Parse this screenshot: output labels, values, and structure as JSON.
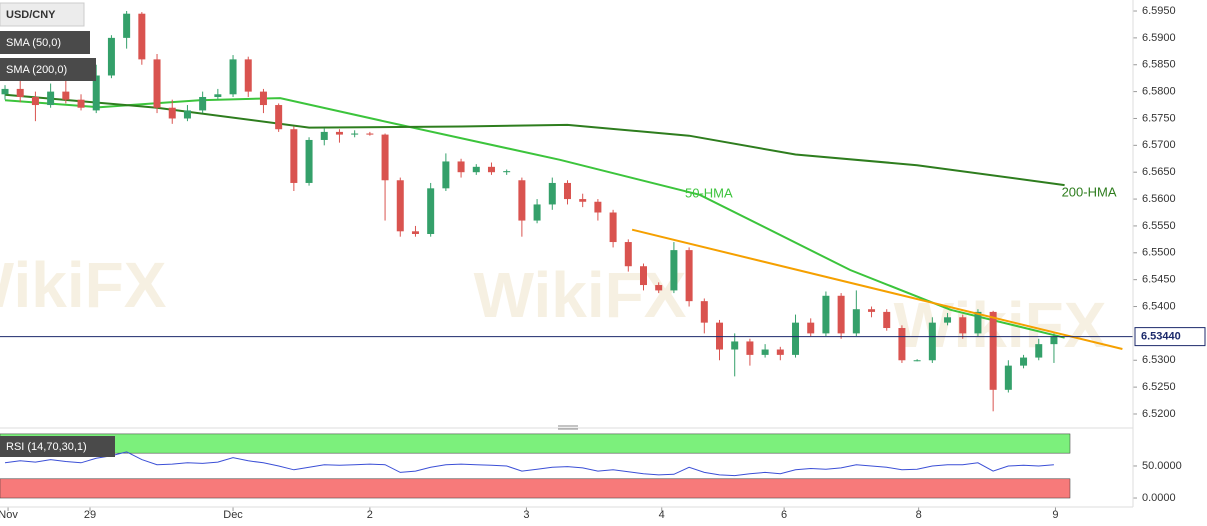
{
  "chart_data": {
    "type": "candlestick",
    "symbol": "USD/CNY",
    "indicators": [
      "SMA (50,0)",
      "SMA (200,0)"
    ],
    "watermark": "WikiFX",
    "xlim": [
      -0.33,
      74.2
    ],
    "xticks": [
      {
        "value": 0.2,
        "label": "Nov"
      },
      {
        "value": 5.59,
        "label": "29"
      },
      {
        "value": 15.0,
        "label": "Dec"
      },
      {
        "value": 24.0,
        "label": "2"
      },
      {
        "value": 34.3,
        "label": "3"
      },
      {
        "value": 43.2,
        "label": "4"
      },
      {
        "value": 51.25,
        "label": "6"
      },
      {
        "value": 60.1,
        "label": "8"
      },
      {
        "value": 69.1,
        "label": "9"
      }
    ],
    "ylim": [
      6.51795,
      6.59705
    ],
    "yticks": [
      {
        "value": 6.52,
        "label": "6.5200"
      },
      {
        "value": 6.525,
        "label": "6.5250"
      },
      {
        "value": 6.53,
        "label": "6.5300"
      },
      {
        "value": 6.54,
        "label": "6.5400"
      },
      {
        "value": 6.545,
        "label": "6.5450"
      },
      {
        "value": 6.55,
        "label": "6.5500"
      },
      {
        "value": 6.555,
        "label": "6.5550"
      },
      {
        "value": 6.56,
        "label": "6.5600"
      },
      {
        "value": 6.565,
        "label": "6.5650"
      },
      {
        "value": 6.57,
        "label": "6.5700"
      },
      {
        "value": 6.575,
        "label": "6.5750"
      },
      {
        "value": 6.58,
        "label": "6.5800"
      },
      {
        "value": 6.585,
        "label": "6.5850"
      },
      {
        "value": 6.59,
        "label": "6.5900"
      },
      {
        "value": 6.595,
        "label": "6.5950"
      }
    ],
    "last_price": {
      "value": 6.5344,
      "label": "6.53440"
    },
    "up_color": "#34a06a",
    "down_color": "#d9534f",
    "open": [
      6.5795,
      6.5805,
      6.579,
      6.5775,
      6.58,
      6.5785,
      6.5765,
      6.583,
      6.59,
      6.5945,
      6.586,
      6.577,
      6.575,
      6.5765,
      6.579,
      6.5795,
      6.586,
      6.58,
      6.5775,
      6.573,
      6.563,
      6.571,
      6.5725,
      6.572,
      6.5722,
      6.572,
      6.5635,
      6.554,
      6.5535,
      6.562,
      6.567,
      6.565,
      6.566,
      6.565,
      6.5635,
      6.556,
      6.559,
      6.563,
      6.56,
      6.5595,
      6.5575,
      6.552,
      6.5475,
      6.544,
      6.543,
      6.5505,
      6.541,
      6.537,
      6.532,
      6.5335,
      6.531,
      6.532,
      6.531,
      6.537,
      6.535,
      6.542,
      6.535,
      6.5395,
      6.539,
      6.536,
      6.53,
      6.53,
      6.537,
      6.538,
      6.535,
      6.539,
      6.5245,
      6.529,
      6.5305,
      6.533
    ],
    "high": [
      6.5812,
      6.583,
      6.58,
      6.5815,
      6.5822,
      6.5795,
      6.585,
      6.5905,
      6.595,
      6.5948,
      6.587,
      6.5785,
      6.5775,
      6.58,
      6.5805,
      6.5868,
      6.5865,
      6.5805,
      6.5778,
      6.5735,
      6.5715,
      6.5732,
      6.573,
      6.5728,
      6.5725,
      6.5722,
      6.564,
      6.555,
      6.563,
      6.5685,
      6.5675,
      6.5665,
      6.5668,
      6.5655,
      6.564,
      6.56,
      6.564,
      6.5635,
      6.561,
      6.56,
      6.558,
      6.5525,
      6.548,
      6.5445,
      6.552,
      6.551,
      6.5415,
      6.5375,
      6.535,
      6.534,
      6.533,
      6.5325,
      6.5385,
      6.5378,
      6.5428,
      6.5425,
      6.543,
      6.54,
      6.5395,
      6.5365,
      6.5302,
      6.538,
      6.5388,
      6.5385,
      6.5395,
      6.5392,
      6.53,
      6.531,
      6.534,
      6.535
    ],
    "low": [
      6.5785,
      6.578,
      6.5745,
      6.577,
      6.5778,
      6.5765,
      6.576,
      6.5825,
      6.588,
      6.585,
      6.576,
      6.574,
      6.5745,
      6.576,
      6.5785,
      6.579,
      6.579,
      6.576,
      6.5725,
      6.5615,
      6.5625,
      6.57,
      6.5705,
      6.5715,
      6.5718,
      6.556,
      6.553,
      6.553,
      6.553,
      6.5615,
      6.564,
      6.5645,
      6.5645,
      6.5645,
      6.553,
      6.5555,
      6.558,
      6.559,
      6.5585,
      6.556,
      6.551,
      6.5465,
      6.543,
      6.5425,
      6.5425,
      6.54,
      6.535,
      6.53,
      6.527,
      6.529,
      6.5305,
      6.53,
      6.5305,
      6.5345,
      6.5345,
      6.534,
      6.5345,
      6.538,
      6.5355,
      6.5295,
      6.5298,
      6.5295,
      6.5365,
      6.534,
      6.5345,
      6.5205,
      6.524,
      6.5285,
      6.53,
      6.5295
    ],
    "close": [
      6.5805,
      6.579,
      6.5775,
      6.58,
      6.5785,
      6.577,
      6.583,
      6.59,
      6.5945,
      6.586,
      6.577,
      6.575,
      6.5765,
      6.579,
      6.5795,
      6.586,
      6.58,
      6.5775,
      6.573,
      6.563,
      6.571,
      6.5725,
      6.572,
      6.5722,
      6.572,
      6.5635,
      6.554,
      6.5535,
      6.562,
      6.567,
      6.565,
      6.566,
      6.565,
      6.5652,
      6.556,
      6.559,
      6.563,
      6.56,
      6.5595,
      6.5575,
      6.552,
      6.5475,
      6.544,
      6.543,
      6.5505,
      6.541,
      6.537,
      6.532,
      6.5335,
      6.531,
      6.532,
      6.531,
      6.537,
      6.535,
      6.542,
      6.535,
      6.5395,
      6.539,
      6.536,
      6.53,
      6.53,
      6.537,
      6.538,
      6.535,
      6.539,
      6.5245,
      6.529,
      6.5305,
      6.533,
      6.5344
    ],
    "series": [
      {
        "name": "50-HMA",
        "color": "#3cc43c",
        "x": [
          0,
          6.2,
          12.8,
          18.1,
          26,
          36.5,
          45.7,
          55.6,
          62.2,
          69.7
        ],
        "values": [
          6.5784,
          6.5771,
          6.5784,
          6.5788,
          6.5738,
          6.5673,
          6.5608,
          6.5468,
          6.5394,
          6.5342
        ]
      },
      {
        "name": "200-HMA",
        "color": "#2e7d1e",
        "x": [
          0,
          10,
          20,
          30,
          37,
          45,
          52,
          60,
          69.7
        ],
        "values": [
          6.5794,
          6.577,
          6.5733,
          6.5735,
          6.5738,
          6.5718,
          6.5683,
          6.5663,
          6.5626
        ]
      }
    ],
    "trendline": {
      "color": "#f5a000",
      "x": [
        41.25,
        73.5
      ],
      "values": [
        6.5543,
        6.5321
      ]
    },
    "rsi": {
      "title": "RSI (14,70,30,1)",
      "color": "#3b4fd6",
      "ylim": [
        -14,
        103
      ],
      "yticks": [
        {
          "value": 50,
          "label": "50.0000"
        },
        {
          "value": 0,
          "label": "0.0000"
        }
      ],
      "overbought": [
        70,
        100
      ],
      "oversold": [
        0,
        30
      ],
      "values": [
        55,
        58,
        56,
        60,
        57,
        55,
        62,
        66,
        72,
        60,
        52,
        53,
        55,
        54,
        56,
        63,
        58,
        55,
        50,
        44,
        48,
        52,
        51,
        52,
        53,
        52,
        40,
        42,
        48,
        52,
        53,
        52,
        51,
        50,
        42,
        45,
        48,
        49,
        47,
        42,
        44,
        41,
        38,
        36,
        37,
        48,
        40,
        36,
        35,
        38,
        40,
        38,
        44,
        46,
        45,
        47,
        52,
        50,
        48,
        44,
        45,
        50,
        52,
        52,
        55,
        42,
        50,
        51,
        50,
        52
      ]
    }
  }
}
